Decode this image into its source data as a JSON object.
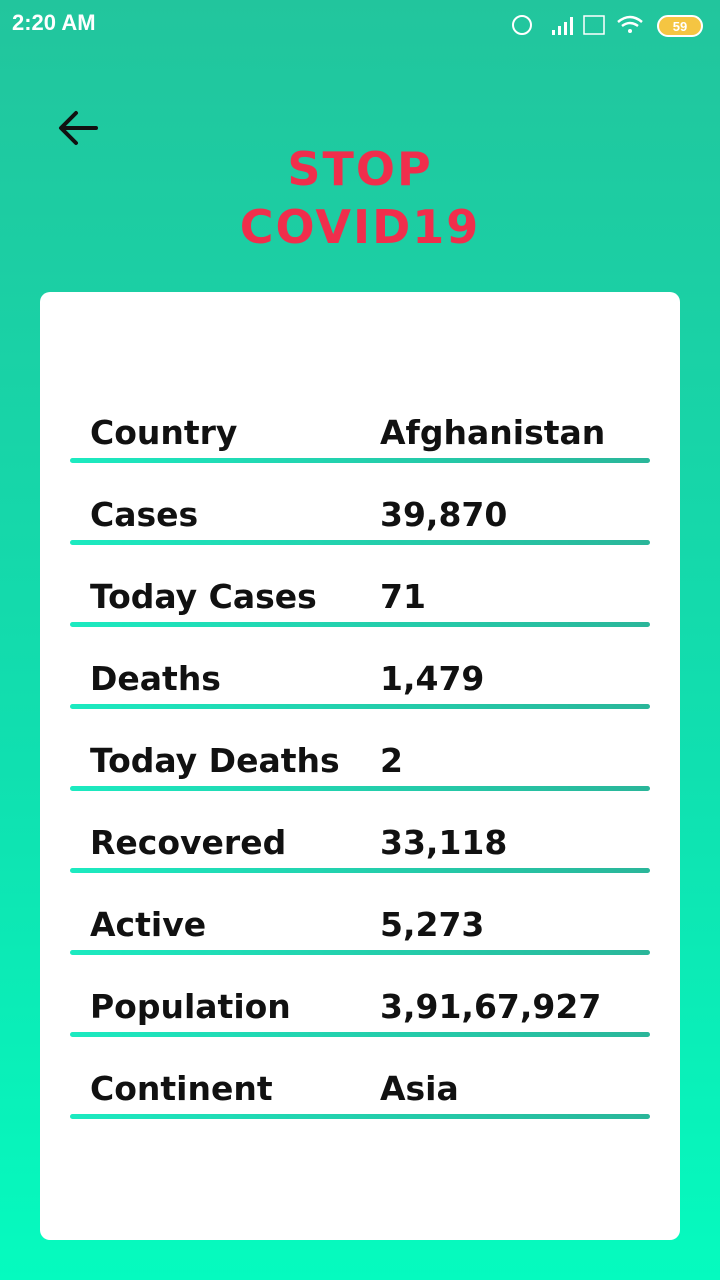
{
  "status_bar": {
    "time": "2:20 AM",
    "battery": "59"
  },
  "header": {
    "logo_line1": "STOP",
    "logo_line2": "COVID19"
  },
  "table": {
    "rows": [
      [
        "Country",
        "Afghanistan"
      ],
      [
        "Cases",
        "39,870"
      ],
      [
        "Today Cases",
        "71"
      ],
      [
        "Deaths",
        "1,479"
      ],
      [
        "Today Deaths",
        "2"
      ],
      [
        "Recovered",
        "33,118"
      ],
      [
        "Active",
        "5,273"
      ],
      [
        "Population",
        "3,91,67,927"
      ],
      [
        "Continent",
        "Asia"
      ]
    ]
  }
}
